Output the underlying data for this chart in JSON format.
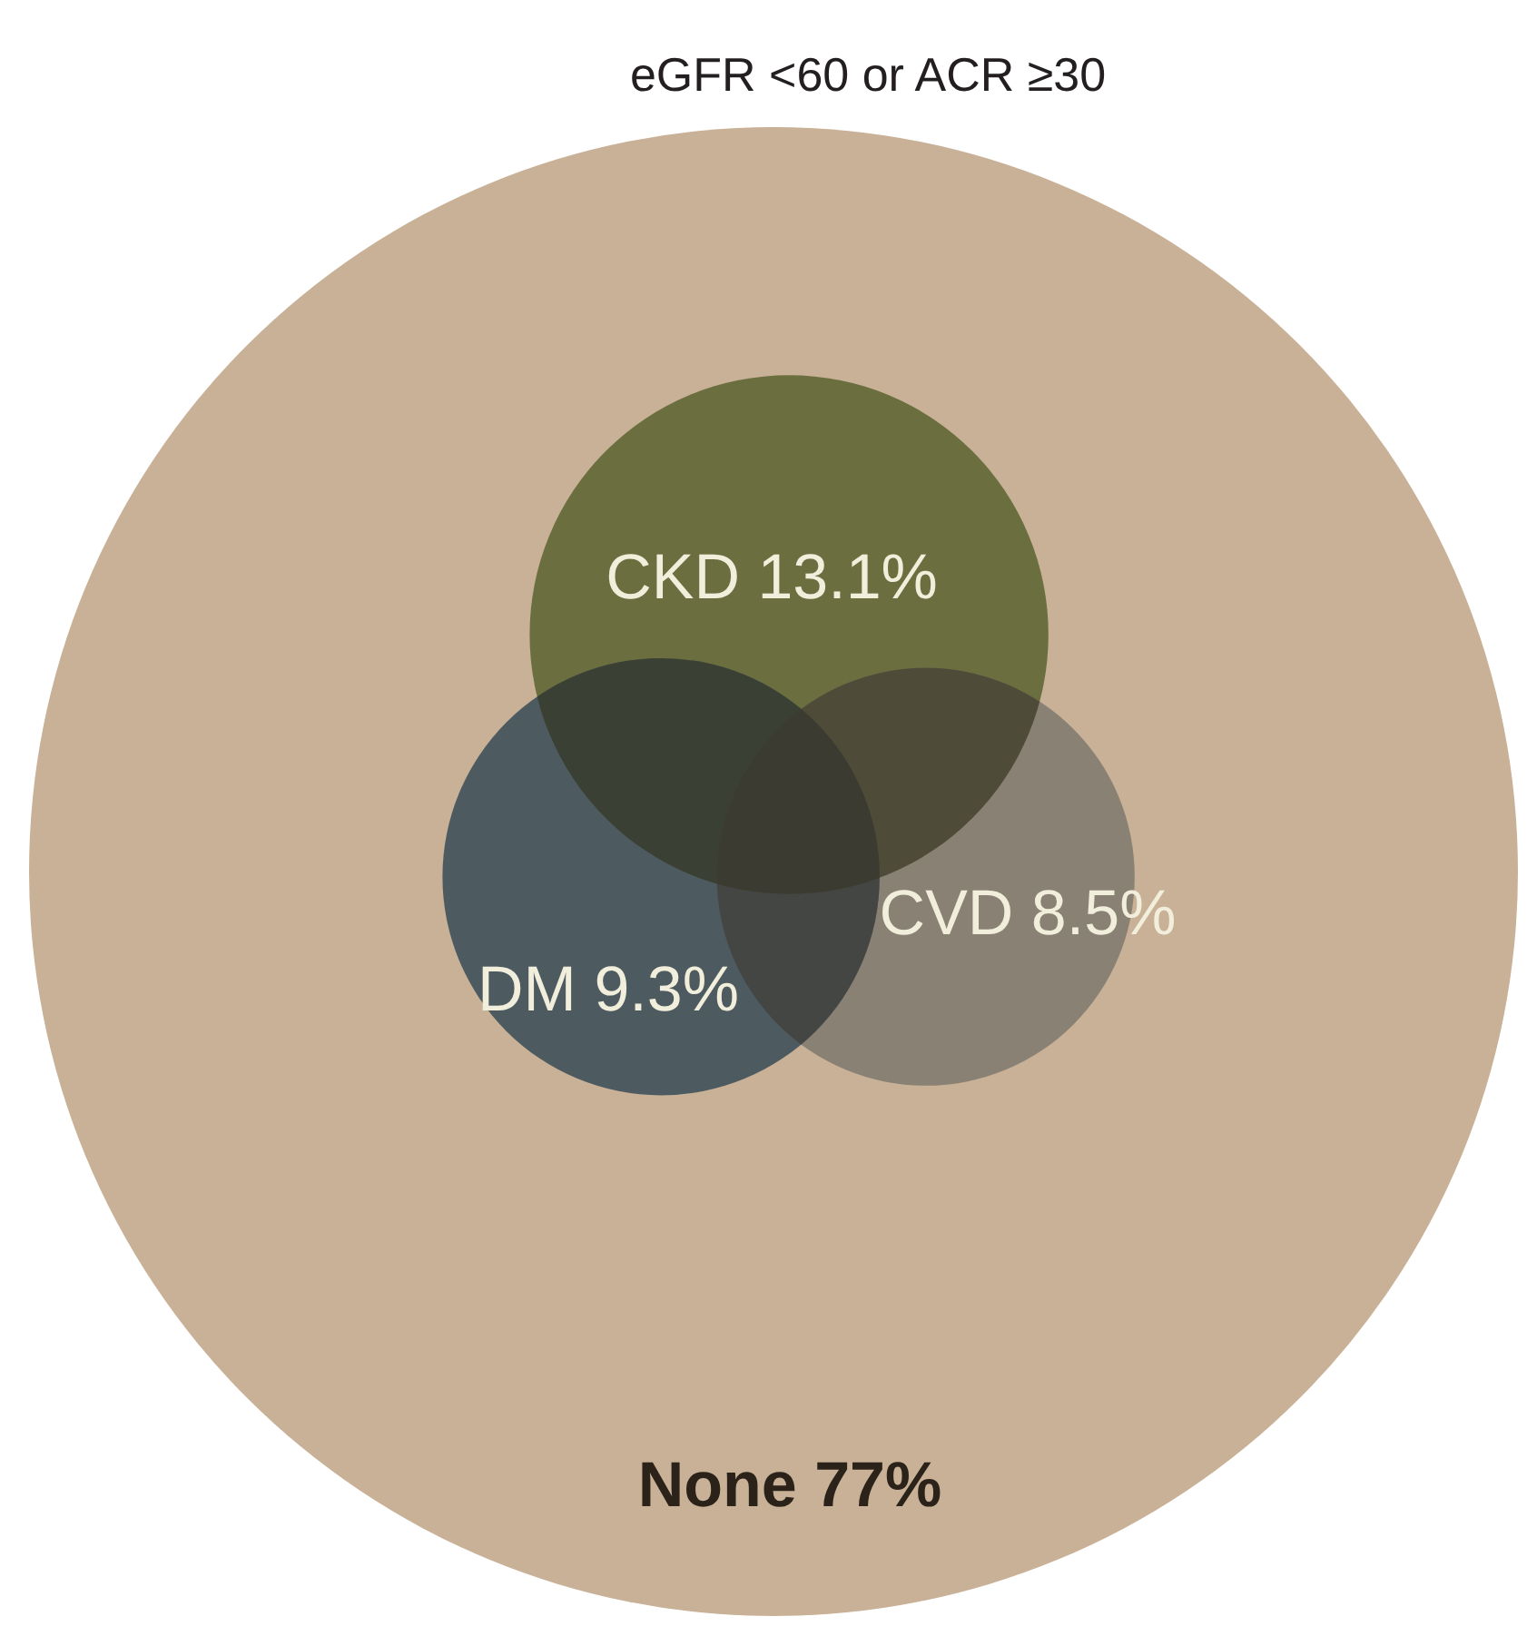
{
  "chart_data": {
    "type": "other",
    "title": "eGFR <60 or ACR ≥30",
    "categories": [
      "CKD",
      "CVD",
      "DM",
      "None"
    ],
    "values": [
      13.1,
      8.5,
      9.3,
      77
    ],
    "value_labels": [
      "13.1%",
      "8.5%",
      "9.3%",
      "77%"
    ],
    "colors": [
      "#6b6f3f",
      "#8a8175",
      "#4d5b61",
      "#c8b196"
    ]
  }
}
